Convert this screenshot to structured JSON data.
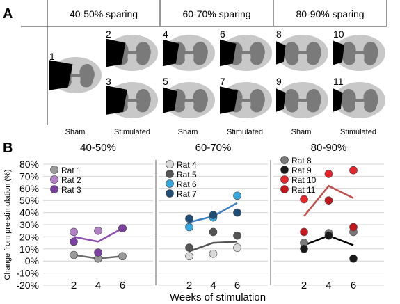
{
  "panel_a": {
    "label": "A",
    "groups": [
      {
        "title": "40-50% sparing",
        "conditions": [
          "Sham",
          "Stimulated"
        ],
        "sections": [
          {
            "num": "1",
            "lesion": 0.55,
            "side": "left"
          },
          {
            "num": "2",
            "lesion": 0.45,
            "side": "left"
          },
          {
            "num": "3",
            "lesion": 0.5,
            "side": "left"
          }
        ]
      },
      {
        "title": "60-70% sparing",
        "conditions": [
          "Sham",
          "Stimulated"
        ],
        "sections": [
          {
            "num": "4",
            "lesion": 0.35,
            "side": "left"
          },
          {
            "num": "5",
            "lesion": 0.3,
            "side": "left"
          },
          {
            "num": "6",
            "lesion": 0.35,
            "side": "left"
          },
          {
            "num": "7",
            "lesion": 0.4,
            "side": "left"
          }
        ]
      },
      {
        "title": "80-90% sparing",
        "conditions": [
          "Sham",
          "Stimulated"
        ],
        "sections": [
          {
            "num": "8",
            "lesion": 0.15,
            "side": "left"
          },
          {
            "num": "9",
            "lesion": 0.15,
            "side": "left"
          },
          {
            "num": "10",
            "lesion": 0.2,
            "side": "left"
          },
          {
            "num": "11",
            "lesion": 0.15,
            "side": "left"
          }
        ]
      }
    ]
  },
  "panel_b": {
    "label": "B",
    "ylabel": "Change from pre-stimulation (%)",
    "xlabel": "Weeks of stimulation"
  },
  "chart_data": [
    {
      "type": "scatter",
      "title": "40-50%",
      "x_ticks": [
        2,
        4,
        6
      ],
      "ylim": [
        -20,
        80
      ],
      "y_ticks": [
        "-20%",
        "-10%",
        "0%",
        "10%",
        "20%",
        "30%",
        "40%",
        "50%",
        "60%",
        "70%",
        "80%"
      ],
      "grid": true,
      "legend_position": "top-left",
      "series": [
        {
          "name": "Rat 1",
          "color": "#9a9a9a",
          "x": [
            2,
            4,
            6
          ],
          "y": [
            5,
            2,
            4
          ]
        },
        {
          "name": "Rat 2",
          "color": "#b27fc9",
          "x": [
            2,
            4,
            6
          ],
          "y": [
            24,
            25,
            27
          ]
        },
        {
          "name": "Rat 3",
          "color": "#7b3fa0",
          "x": [
            2,
            4,
            6
          ],
          "y": [
            16,
            7,
            27
          ]
        }
      ],
      "trend_lines": [
        {
          "color": "#6b6b6b",
          "x": [
            2,
            4,
            6
          ],
          "y": [
            5,
            2,
            4
          ]
        },
        {
          "color": "#8e4fb3",
          "x": [
            2,
            4,
            6
          ],
          "y": [
            20,
            16,
            27
          ]
        }
      ]
    },
    {
      "type": "scatter",
      "title": "60-70%",
      "x_ticks": [
        2,
        4,
        6
      ],
      "ylim": [
        -20,
        80
      ],
      "grid": true,
      "legend_position": "top-left",
      "series": [
        {
          "name": "Rat 4",
          "color": "#d9d9d9",
          "x": [
            2,
            4,
            6
          ],
          "y": [
            4,
            6,
            11
          ]
        },
        {
          "name": "Rat 5",
          "color": "#555555",
          "x": [
            2,
            4,
            6
          ],
          "y": [
            11,
            24,
            21
          ]
        },
        {
          "name": "Rat 6",
          "color": "#35a8e0",
          "x": [
            2,
            4,
            6
          ],
          "y": [
            28,
            36,
            54
          ]
        },
        {
          "name": "Rat 7",
          "color": "#1f4e79",
          "x": [
            2,
            4,
            6
          ],
          "y": [
            35,
            38,
            40
          ]
        }
      ],
      "trend_lines": [
        {
          "color": "#555555",
          "x": [
            2,
            4,
            6
          ],
          "y": [
            8,
            15,
            16
          ]
        },
        {
          "color": "#3c7fc1",
          "x": [
            2,
            4,
            6
          ],
          "y": [
            32,
            37,
            48
          ]
        }
      ]
    },
    {
      "type": "scatter",
      "title": "80-90%",
      "x_ticks": [
        2,
        4,
        6
      ],
      "ylim": [
        -20,
        80
      ],
      "grid": true,
      "legend_position": "top-left",
      "series": [
        {
          "name": "Rat 8",
          "color": "#7a7a7a",
          "x": [
            2,
            4,
            6
          ],
          "y": [
            15,
            23,
            24
          ]
        },
        {
          "name": "Rat 9",
          "color": "#1a1a1a",
          "x": [
            2,
            4,
            6
          ],
          "y": [
            10,
            21,
            2
          ]
        },
        {
          "name": "Rat 10",
          "color": "#e5262b",
          "x": [
            2,
            4,
            6
          ],
          "y": [
            51,
            72,
            75
          ]
        },
        {
          "name": "Rat 11",
          "color": "#c4161c",
          "x": [
            2,
            4,
            6
          ],
          "y": [
            24,
            50,
            28
          ]
        }
      ],
      "trend_lines": [
        {
          "color": "#000000",
          "x": [
            2,
            4,
            6
          ],
          "y": [
            13,
            21,
            13
          ]
        },
        {
          "color": "#c0504d",
          "x": [
            2,
            4,
            6
          ],
          "y": [
            37,
            62,
            52
          ]
        }
      ]
    }
  ]
}
